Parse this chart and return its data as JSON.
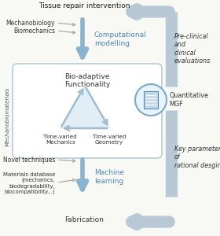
{
  "bg_color": "#f8f8f5",
  "box_edge_color": "#b8ccd8",
  "box_bg_color": "#ffffff",
  "blue_arrow_color": "#8ab4cc",
  "gray_arrow_color": "#b8c8d4",
  "tri_color": "#a0bcd0",
  "tri_fill": "#d0e4f0",
  "text_dark": "#1a1a1a",
  "text_blue": "#4a88b8",
  "text_gray": "#444444",
  "doc_bg": "#c0d8ec",
  "doc_edge": "#7aaac8",
  "circle_edge": "#7aaac8",
  "circle_bg": "#e8f4fc",
  "title_top": "Tissue repair intervention",
  "label_comp": "Computational\nmodelling",
  "label_bio_adaptive": "Bio-adaptive\nFunctionality",
  "label_tv_mechanics": "Time-varied\nMechanics",
  "label_tv_geometry": "Time-varied\nGeometry",
  "label_machine": "Machine\nlearning",
  "label_fabrication": "Fabrication",
  "label_mechanobio": "Mechanobiology",
  "label_biomechanics": "Biomechanics",
  "label_novel": "Novel techniques",
  "label_materials": "Materials database\n(mechanics,\nbiodegradability,\nbiocompatibility...)",
  "label_left_axis": "Mechanobiomaterials",
  "label_right_top": "Pre-clinical\nand\nclinical\nevaluations",
  "label_quant": "Quantitative\nMGF",
  "label_right_bottom": "Key parameters\nof\nrational desgin"
}
